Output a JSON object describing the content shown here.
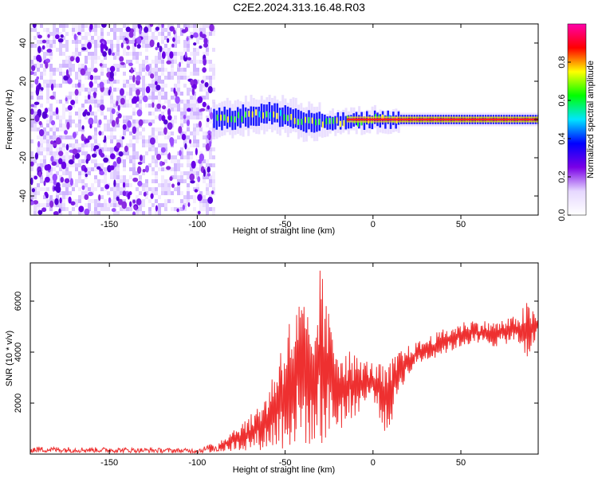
{
  "title": "C2E2.2024.313.16.48.R03",
  "chart_data": [
    {
      "type": "heatmap",
      "xlabel": "Height of straight line (km)",
      "ylabel": "Frequency (Hz)",
      "xlim": [
        -195,
        94
      ],
      "ylim": [
        -50,
        50
      ],
      "x_ticks": [
        -150,
        -100,
        -50,
        0,
        50
      ],
      "y_ticks": [
        -40,
        -20,
        0,
        20,
        40
      ],
      "colorbar": {
        "label": "Normalized spectral amplitude",
        "range": [
          0,
          1
        ],
        "ticks": [
          "0.0",
          "0.2",
          "0.4",
          "0.6",
          "0.8"
        ],
        "tick_values": [
          0,
          0.2,
          0.4,
          0.6,
          0.8
        ],
        "colors": [
          "#ffffff",
          "#e6d8ff",
          "#7a00e6",
          "#0000ff",
          "#00e5ff",
          "#00ff00",
          "#ffff00",
          "#ff0000",
          "#ff00aa"
        ]
      },
      "noise_region_x": [
        -195,
        -91
      ],
      "signal_line": {
        "x_start": -91,
        "x_end": 94,
        "freq": 0
      },
      "signal_track": [
        {
          "x": -91,
          "f": 0
        },
        {
          "x": -80,
          "f": 1
        },
        {
          "x": -70,
          "f": 2
        },
        {
          "x": -60,
          "f": 3
        },
        {
          "x": -50,
          "f": 2
        },
        {
          "x": -40,
          "f": -1
        },
        {
          "x": -30,
          "f": -2
        },
        {
          "x": -20,
          "f": -1
        },
        {
          "x": -10,
          "f": -1
        },
        {
          "x": 0,
          "f": 0
        },
        {
          "x": 10,
          "f": 0
        },
        {
          "x": 20,
          "f": 0
        },
        {
          "x": 94,
          "f": 0
        }
      ]
    },
    {
      "type": "line",
      "xlabel": "Height of straight line (km)",
      "ylabel": "SNR (10 * v/v)",
      "xlim": [
        -195,
        94
      ],
      "ylim": [
        0,
        7500
      ],
      "x_ticks": [
        -150,
        -100,
        -50,
        0,
        50
      ],
      "y_ticks": [
        2000,
        4000,
        6000
      ],
      "line_color": "#ee3030",
      "envelope": [
        {
          "x": -195,
          "lo": 60,
          "hi": 300
        },
        {
          "x": -150,
          "lo": 60,
          "hi": 260
        },
        {
          "x": -100,
          "lo": 40,
          "hi": 220
        },
        {
          "x": -88,
          "lo": 60,
          "hi": 500
        },
        {
          "x": -80,
          "lo": 100,
          "hi": 1000
        },
        {
          "x": -70,
          "lo": 150,
          "hi": 1500
        },
        {
          "x": -60,
          "lo": 150,
          "hi": 2500
        },
        {
          "x": -50,
          "lo": 150,
          "hi": 5000
        },
        {
          "x": -42,
          "lo": 200,
          "hi": 6100
        },
        {
          "x": -38,
          "lo": 300,
          "hi": 6200
        },
        {
          "x": -35,
          "lo": 300,
          "hi": 4200
        },
        {
          "x": -30,
          "lo": 300,
          "hi": 7500
        },
        {
          "x": -25,
          "lo": 500,
          "hi": 5500
        },
        {
          "x": -20,
          "lo": 800,
          "hi": 4600
        },
        {
          "x": -10,
          "lo": 1500,
          "hi": 3900
        },
        {
          "x": 0,
          "lo": 2200,
          "hi": 3600
        },
        {
          "x": 8,
          "lo": 500,
          "hi": 3500
        },
        {
          "x": 15,
          "lo": 2500,
          "hi": 4100
        },
        {
          "x": 25,
          "lo": 3500,
          "hi": 4400
        },
        {
          "x": 40,
          "lo": 3900,
          "hi": 4900
        },
        {
          "x": 55,
          "lo": 4300,
          "hi": 5300
        },
        {
          "x": 70,
          "lo": 4200,
          "hi": 5200
        },
        {
          "x": 80,
          "lo": 4400,
          "hi": 5400
        },
        {
          "x": 88,
          "lo": 3600,
          "hi": 6000
        },
        {
          "x": 94,
          "lo": 4800,
          "hi": 5300
        }
      ]
    }
  ]
}
